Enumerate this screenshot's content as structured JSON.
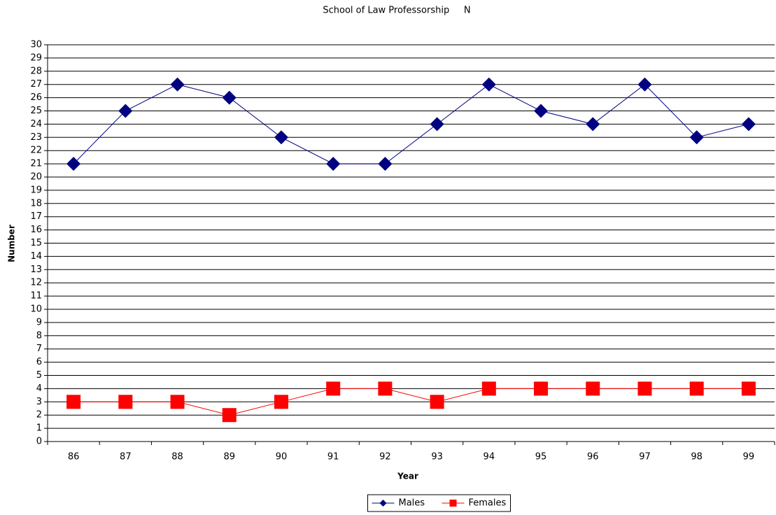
{
  "chart_data": {
    "type": "line",
    "title": "School of Law Professorship     N",
    "x_label": "Year",
    "y_label": "Number",
    "categories": [
      "86",
      "87",
      "88",
      "89",
      "90",
      "91",
      "92",
      "93",
      "94",
      "95",
      "96",
      "97",
      "98",
      "99"
    ],
    "series": [
      {
        "name": "Males",
        "color": "#000080",
        "marker": "diamond",
        "values": [
          21,
          25,
          27,
          26,
          23,
          21,
          21,
          24,
          27,
          25,
          24,
          27,
          23,
          24
        ]
      },
      {
        "name": "Females",
        "color": "#ff0000",
        "marker": "square",
        "values": [
          3,
          3,
          3,
          2,
          3,
          4,
          4,
          3,
          4,
          4,
          4,
          4,
          4,
          4
        ]
      }
    ],
    "ylim": [
      0,
      30
    ],
    "yticks": [
      0,
      1,
      2,
      3,
      4,
      5,
      6,
      7,
      8,
      9,
      10,
      11,
      12,
      13,
      14,
      15,
      16,
      17,
      18,
      19,
      20,
      21,
      22,
      23,
      24,
      25,
      26,
      27,
      28,
      29,
      30
    ],
    "grid": true,
    "legend": "bottom"
  }
}
